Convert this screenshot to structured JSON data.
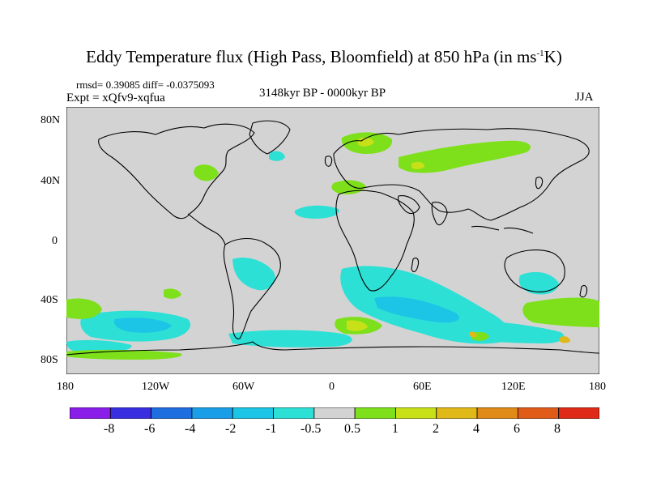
{
  "title": {
    "main": "Eddy Temperature flux (High Pass, Bloomfield) at 850 hPa (in ms",
    "sup": "-1",
    "end": "K)"
  },
  "stats": "rmsd= 0.39085 diff= -0.0375093",
  "experiment": "Expt = xQfv9-xqfua",
  "period": "3148kyr BP - 0000kyr BP",
  "season": "JJA",
  "lat_ticks": [
    "80N",
    "40N",
    "0",
    "40S",
    "80S"
  ],
  "lon_ticks": [
    "180",
    "120W",
    "60W",
    "0",
    "60E",
    "120E",
    "180"
  ],
  "colorbar": {
    "labels": [
      "-8",
      "-6",
      "-4",
      "-2",
      "-1",
      "-0.5",
      "0.5",
      "1",
      "2",
      "4",
      "6",
      "8"
    ],
    "colors": [
      "#8a1de8",
      "#3a2fe0",
      "#1f6ee0",
      "#1a9ee8",
      "#1cc4e6",
      "#2de0d6",
      "#d3d3d3",
      "#7ee01a",
      "#c8e018",
      "#e0b818",
      "#e08a18",
      "#e05a18",
      "#e02a18"
    ]
  },
  "colors": {
    "land_background": "#d3d3d3",
    "coast": "#000000"
  }
}
